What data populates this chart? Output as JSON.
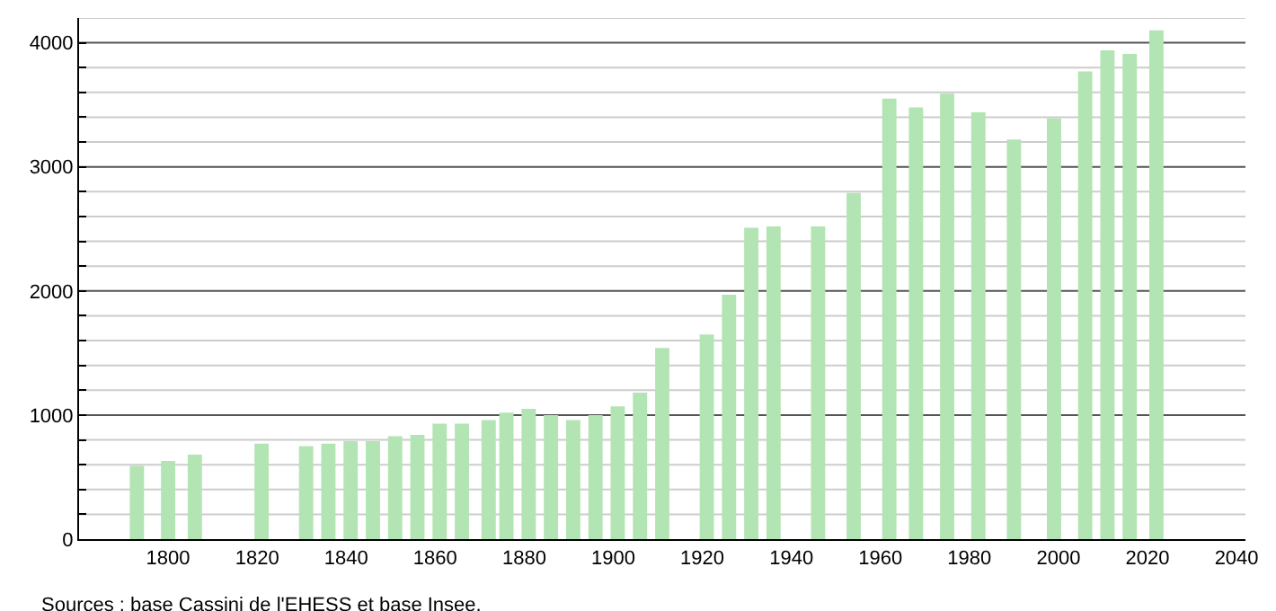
{
  "chart_data": {
    "type": "bar",
    "x": [
      1793,
      1800,
      1806,
      1821,
      1831,
      1836,
      1841,
      1846,
      1851,
      1856,
      1861,
      1866,
      1872,
      1876,
      1881,
      1886,
      1891,
      1896,
      1901,
      1906,
      1911,
      1921,
      1926,
      1931,
      1936,
      1946,
      1954,
      1962,
      1968,
      1975,
      1982,
      1990,
      1999,
      2006,
      2011,
      2016,
      2022
    ],
    "values": [
      590,
      630,
      680,
      770,
      750,
      770,
      790,
      790,
      830,
      840,
      930,
      930,
      960,
      1020,
      1050,
      1000,
      960,
      1000,
      1070,
      1180,
      1540,
      1650,
      1970,
      2510,
      2520,
      2520,
      2790,
      3550,
      3480,
      3590,
      3440,
      3220,
      3390,
      3770,
      3940,
      3910,
      4100
    ],
    "color": "#b3e4b3",
    "xlim": [
      1780,
      2042
    ],
    "xticks": [
      1800,
      1820,
      1840,
      1860,
      1880,
      1900,
      1920,
      1940,
      1960,
      1980,
      2000,
      2020,
      2040
    ],
    "ylim": [
      0,
      4200
    ],
    "yticks": [
      0,
      {
        "value": 200,
        "label": null
      },
      {
        "value": 400,
        "label": null
      },
      {
        "value": 600,
        "label": null
      },
      {
        "value": 800,
        "label": null
      },
      1000,
      {
        "value": 1200,
        "label": null
      },
      {
        "value": 1400,
        "label": null
      },
      {
        "value": 1600,
        "label": null
      },
      {
        "value": 1800,
        "label": null
      },
      2000,
      {
        "value": 2200,
        "label": null
      },
      {
        "value": 2400,
        "label": null
      },
      {
        "value": 2600,
        "label": null
      },
      {
        "value": 2800,
        "label": null
      },
      3000,
      {
        "value": 3200,
        "label": null
      },
      {
        "value": 3400,
        "label": null
      },
      {
        "value": 3600,
        "label": null
      },
      {
        "value": 3800,
        "label": null
      },
      4000,
      {
        "value": 4200,
        "label": null
      }
    ],
    "grid": "y",
    "annotations": [
      "Sources : base Cassini de l'EHESS et base Insee."
    ]
  }
}
